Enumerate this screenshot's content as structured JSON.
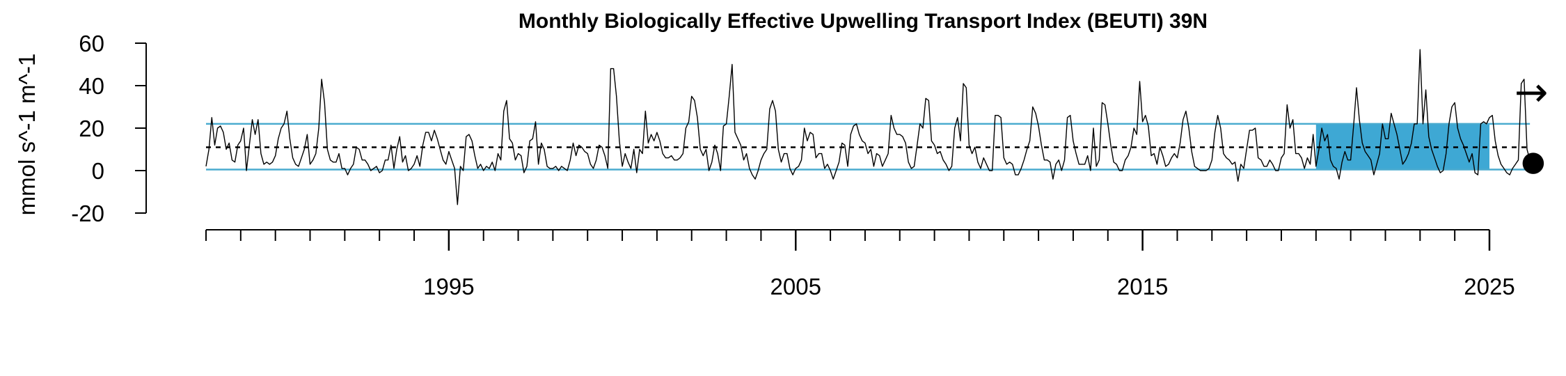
{
  "chart_data": {
    "type": "line",
    "title": "Monthly Biologically Effective Upwelling Transport Index (BEUTI) 39N",
    "xlabel": "",
    "ylabel": "mmol s^-1 m^-1",
    "x_start": 1988.0,
    "x_step_months": 1,
    "xlim": [
      1988.0,
      2025.0
    ],
    "ylim": [
      -20,
      60
    ],
    "y_ticks": [
      -20,
      0,
      20,
      40,
      60
    ],
    "x_tick_labels": [
      "1995",
      "2005",
      "2015",
      "2025"
    ],
    "x_major_ticks": [
      1995,
      2005,
      2015,
      2025
    ],
    "x_minor_ticks": [
      1988,
      1989,
      1990,
      1991,
      1992,
      1993,
      1994,
      1996,
      1997,
      1998,
      1999,
      2000,
      2001,
      2002,
      2003,
      2004,
      2006,
      2007,
      2008,
      2009,
      2010,
      2011,
      2012,
      2013,
      2014,
      2016,
      2017,
      2018,
      2019,
      2020,
      2021,
      2022,
      2023,
      2024
    ],
    "mean": 11,
    "upper_sd": 22,
    "lower_sd": 0.5,
    "recent_period_start": 2020.0,
    "recent_period_end": 2025.0,
    "trend_symbol": "→",
    "mean_symbol": "●",
    "colors": {
      "line": "#000000",
      "sd_lines": "#4aabcf",
      "recent_fill": "#3ea8d4"
    },
    "series": [
      {
        "values": [
          2,
          10,
          25,
          12,
          20,
          21,
          18,
          10,
          13,
          5,
          4,
          12,
          14,
          20,
          0,
          12,
          24,
          17,
          24,
          8,
          3,
          4,
          3,
          4,
          7,
          15,
          20,
          22,
          28,
          15,
          6,
          3,
          2,
          6,
          10,
          17,
          3,
          5,
          8,
          20,
          43,
          32,
          10,
          5,
          4,
          4,
          8,
          1,
          1,
          -2,
          1,
          3,
          11,
          10,
          5,
          5,
          3,
          0,
          1,
          2,
          -1,
          0,
          5,
          5,
          12,
          1,
          10,
          16,
          4,
          7,
          0,
          1,
          3,
          7,
          2,
          12,
          18,
          18,
          14,
          19,
          15,
          10,
          5,
          3,
          9,
          5,
          1,
          -16,
          2,
          0,
          16,
          17,
          14,
          7,
          1,
          3,
          0,
          2,
          1,
          4,
          0,
          8,
          5,
          28,
          33,
          15,
          13,
          5,
          8,
          7,
          -1,
          2,
          14,
          15,
          23,
          3,
          13,
          10,
          2,
          1,
          1,
          2,
          0,
          2,
          1,
          0,
          5,
          13,
          7,
          12,
          11,
          9,
          8,
          3,
          1,
          5,
          12,
          11,
          7,
          1,
          48,
          48,
          35,
          14,
          2,
          8,
          4,
          1,
          10,
          -1,
          10,
          8,
          28,
          13,
          17,
          14,
          18,
          14,
          8,
          6,
          6,
          7,
          5,
          5,
          6,
          8,
          20,
          23,
          35,
          33,
          25,
          10,
          7,
          10,
          0,
          4,
          12,
          8,
          0,
          21,
          22,
          35,
          50,
          18,
          15,
          12,
          5,
          8,
          1,
          -2,
          -4,
          0,
          5,
          8,
          10,
          29,
          33,
          28,
          10,
          4,
          8,
          8,
          1,
          -2,
          1,
          2,
          5,
          20,
          14,
          18,
          17,
          6,
          8,
          8,
          1,
          3,
          0,
          -4,
          0,
          4,
          13,
          12,
          2,
          17,
          21,
          22,
          17,
          14,
          13,
          8,
          10,
          2,
          8,
          7,
          2,
          5,
          8,
          26,
          20,
          17,
          17,
          16,
          13,
          4,
          1,
          2,
          12,
          22,
          20,
          34,
          33,
          14,
          12,
          8,
          9,
          5,
          3,
          0,
          2,
          20,
          25,
          14,
          41,
          39,
          12,
          8,
          11,
          4,
          1,
          6,
          3,
          0,
          0,
          26,
          26,
          25,
          6,
          3,
          4,
          3,
          -2,
          -2,
          1,
          5,
          10,
          14,
          30,
          27,
          21,
          12,
          5,
          5,
          4,
          -4,
          3,
          5,
          0,
          5,
          25,
          26,
          14,
          8,
          3,
          3,
          3,
          7,
          0,
          20,
          2,
          5,
          32,
          31,
          22,
          12,
          4,
          3,
          0,
          0,
          5,
          7,
          11,
          20,
          17,
          42,
          23,
          26,
          21,
          7,
          8,
          3,
          11,
          7,
          2,
          3,
          6,
          8,
          6,
          13,
          24,
          28,
          20,
          9,
          2,
          1,
          0,
          0,
          0,
          1,
          5,
          18,
          26,
          20,
          8,
          6,
          5,
          3,
          4,
          -5,
          3,
          1,
          10,
          19,
          19,
          20,
          6,
          5,
          2,
          2,
          5,
          3,
          0,
          0,
          6,
          8,
          31,
          20,
          24,
          8,
          8,
          6,
          1,
          6,
          3,
          17,
          2,
          10,
          20,
          14,
          17,
          5,
          2,
          1,
          -4,
          4,
          9,
          5,
          5,
          21,
          39,
          24,
          13,
          9,
          7,
          5,
          -2,
          3,
          8,
          22,
          15,
          15,
          27,
          22,
          17,
          10,
          3,
          5,
          8,
          13,
          22,
          22,
          57,
          22,
          38,
          16,
          10,
          6,
          2,
          -1,
          0,
          8,
          22,
          30,
          32,
          20,
          15,
          12,
          8,
          4,
          8,
          -1,
          -2,
          22,
          23,
          22,
          25,
          26,
          14,
          7,
          3,
          1,
          -1,
          -2,
          1,
          3,
          5,
          41,
          43,
          10,
          5
        ]
      }
    ]
  }
}
